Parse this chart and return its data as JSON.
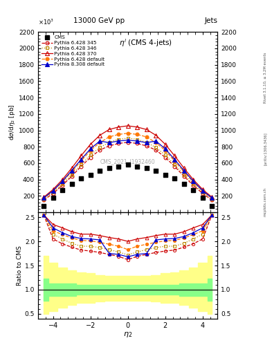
{
  "title_main": "13000 GeV pp",
  "title_right": "Jets",
  "plot_title": "$\\eta^i$ (CMS 4-jets)",
  "xlabel": "$\\eta_2$",
  "ylabel_main": "d$\\sigma$/d$\\eta_2$ [pb]",
  "ylabel_ratio": "Ratio to CMS",
  "watermark": "CMS_2021_I1932460",
  "rivet_text": "Rivet 3.1.10, ≥ 3.2M events",
  "arxiv_text": "[arXiv:1306.3436]",
  "mcplots_text": "mcplots.cern.ch",
  "ylim_main": [
    0,
    2200
  ],
  "ylim_ratio": [
    0.4,
    2.6
  ],
  "yticks_main": [
    200,
    400,
    600,
    800,
    1000,
    1200,
    1400,
    1600,
    1800,
    2000,
    2200
  ],
  "yticks_ratio": [
    0.5,
    1.0,
    1.5,
    2.0,
    2.5
  ],
  "xlim": [
    -4.8,
    4.8
  ],
  "xticks": [
    -4,
    -2,
    0,
    2,
    4
  ],
  "eta_cms": [
    -4.5,
    -4.0,
    -3.5,
    -3.0,
    -2.5,
    -2.0,
    -1.5,
    -1.0,
    -0.5,
    0.0,
    0.5,
    1.0,
    1.5,
    2.0,
    2.5,
    3.0,
    3.5,
    4.0,
    4.5
  ],
  "cms_vals": [
    75,
    175,
    270,
    345,
    415,
    455,
    510,
    545,
    560,
    580,
    560,
    545,
    510,
    455,
    415,
    345,
    270,
    175,
    75
  ],
  "eta_mc": [
    -4.5,
    -4.0,
    -3.5,
    -3.0,
    -2.5,
    -2.0,
    -1.5,
    -1.0,
    -0.5,
    0.0,
    0.5,
    1.0,
    1.5,
    2.0,
    2.5,
    3.0,
    3.5,
    4.0,
    4.5
  ],
  "p6_345_vals": [
    150,
    230,
    330,
    440,
    560,
    670,
    760,
    810,
    840,
    855,
    840,
    810,
    760,
    670,
    560,
    440,
    330,
    230,
    150
  ],
  "p6_346_vals": [
    160,
    245,
    345,
    460,
    580,
    700,
    790,
    855,
    890,
    905,
    890,
    855,
    790,
    700,
    580,
    460,
    345,
    245,
    160
  ],
  "p6_370_vals": [
    185,
    280,
    400,
    540,
    690,
    830,
    940,
    1010,
    1040,
    1055,
    1040,
    1010,
    940,
    830,
    690,
    540,
    400,
    280,
    185
  ],
  "p6_def_vals": [
    170,
    260,
    370,
    495,
    625,
    755,
    850,
    920,
    950,
    965,
    950,
    920,
    850,
    755,
    625,
    495,
    370,
    260,
    170
  ],
  "p8_def_vals": [
    175,
    265,
    380,
    510,
    645,
    775,
    870,
    850,
    870,
    880,
    870,
    850,
    870,
    775,
    645,
    510,
    380,
    265,
    175
  ],
  "ratio_p6_345": [
    2.55,
    2.05,
    1.95,
    1.88,
    1.82,
    1.8,
    1.77,
    1.73,
    1.69,
    1.62,
    1.69,
    1.73,
    1.77,
    1.8,
    1.82,
    1.88,
    1.95,
    2.05,
    2.55
  ],
  "ratio_p6_346": [
    2.55,
    2.15,
    2.05,
    1.96,
    1.9,
    1.9,
    1.87,
    1.83,
    1.78,
    1.72,
    1.78,
    1.83,
    1.87,
    1.9,
    1.9,
    1.96,
    2.05,
    2.15,
    2.55
  ],
  "ratio_p6_370": [
    2.55,
    2.35,
    2.28,
    2.2,
    2.15,
    2.15,
    2.12,
    2.08,
    2.05,
    2.0,
    2.05,
    2.08,
    2.12,
    2.15,
    2.15,
    2.2,
    2.28,
    2.35,
    2.55
  ],
  "ratio_p6_def": [
    2.55,
    2.22,
    2.14,
    2.07,
    2.02,
    2.01,
    1.98,
    1.94,
    1.9,
    1.83,
    1.9,
    1.94,
    1.98,
    2.01,
    2.02,
    2.07,
    2.14,
    2.22,
    2.55
  ],
  "ratio_p8_def": [
    2.55,
    2.28,
    2.18,
    2.1,
    2.06,
    2.05,
    2.03,
    1.75,
    1.73,
    1.68,
    1.73,
    1.75,
    2.03,
    2.05,
    2.06,
    2.1,
    2.18,
    2.28,
    2.55
  ],
  "green_band_lo": [
    0.77,
    0.87,
    0.87,
    0.87,
    0.9,
    0.9,
    0.9,
    0.9,
    0.9,
    0.9,
    0.9,
    0.9,
    0.9,
    0.9,
    0.9,
    0.87,
    0.87,
    0.87,
    0.77
  ],
  "green_band_hi": [
    1.23,
    1.13,
    1.13,
    1.13,
    1.1,
    1.1,
    1.1,
    1.1,
    1.1,
    1.1,
    1.1,
    1.1,
    1.1,
    1.1,
    1.1,
    1.13,
    1.13,
    1.13,
    1.23
  ],
  "yellow_band_lo": [
    0.5,
    0.55,
    0.63,
    0.68,
    0.72,
    0.73,
    0.76,
    0.77,
    0.77,
    0.77,
    0.77,
    0.77,
    0.76,
    0.73,
    0.72,
    0.68,
    0.63,
    0.55,
    0.5
  ],
  "yellow_band_hi": [
    1.7,
    1.56,
    1.46,
    1.4,
    1.36,
    1.34,
    1.3,
    1.29,
    1.28,
    1.28,
    1.28,
    1.29,
    1.3,
    1.34,
    1.36,
    1.4,
    1.46,
    1.56,
    1.7
  ],
  "color_p6_345": "#cc0000",
  "color_p6_346": "#bb8800",
  "color_p6_370": "#cc0000",
  "color_p6_def": "#ff7700",
  "color_p8_def": "#0000cc",
  "color_cms": "#000000"
}
